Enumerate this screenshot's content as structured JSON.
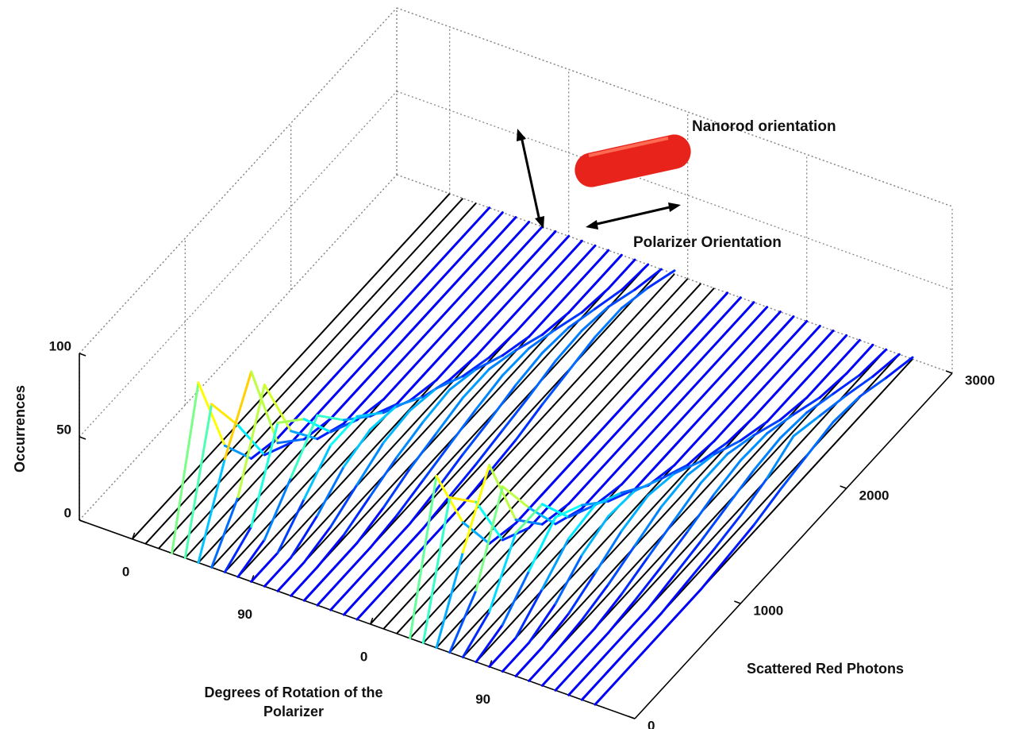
{
  "chart_data": {
    "type": "waterfall",
    "xlabel": "Degrees of Rotation of the Polarizer",
    "ylabel": "Scattered Red Photons",
    "zlabel": "Occurrences",
    "annotations": [
      "Nanorod orientation",
      "Polarizer Orientation"
    ],
    "colormap": "jet",
    "line_color": "#000000",
    "xlim": [
      -40,
      380
    ],
    "xticks": [
      0,
      90,
      {
        "value": 180,
        "label": "0"
      },
      {
        "value": 270,
        "label": "90"
      }
    ],
    "ylim": [
      0,
      3000
    ],
    "yticks": [
      0,
      1000,
      2000,
      3000
    ],
    "zlim": [
      0,
      100
    ],
    "zticks": [
      0,
      50,
      100
    ],
    "x": [
      0,
      10,
      20,
      30,
      40,
      50,
      60,
      70,
      80,
      90,
      100,
      110,
      120,
      130,
      140,
      150,
      160,
      170,
      180,
      190,
      200,
      210,
      220,
      230,
      240,
      250,
      260,
      270,
      280,
      290,
      300,
      310,
      320,
      330,
      340,
      350
    ],
    "y": [
      0,
      250,
      500,
      750,
      1000,
      1250,
      1500,
      1750,
      2000,
      2250,
      2500,
      2750,
      3000
    ],
    "values": [
      [
        0,
        0,
        0,
        0,
        0,
        0,
        0,
        0,
        0,
        0,
        0,
        0,
        0
      ],
      [
        0,
        0,
        0,
        0,
        0,
        0,
        0,
        0,
        0,
        0,
        0,
        0,
        0
      ],
      [
        0,
        0,
        0,
        0,
        0,
        0,
        0,
        0,
        0,
        0,
        0,
        0,
        0
      ],
      [
        0,
        85,
        30,
        5,
        0,
        0,
        0,
        0,
        0,
        0,
        0,
        0,
        0
      ],
      [
        0,
        75,
        45,
        10,
        0,
        0,
        0,
        0,
        0,
        0,
        0,
        0,
        0
      ],
      [
        0,
        45,
        80,
        20,
        5,
        0,
        0,
        0,
        0,
        0,
        0,
        0,
        0
      ],
      [
        0,
        25,
        75,
        30,
        8,
        0,
        0,
        0,
        0,
        0,
        0,
        0,
        0
      ],
      [
        0,
        10,
        55,
        40,
        15,
        5,
        0,
        0,
        0,
        0,
        0,
        0,
        0
      ],
      [
        0,
        5,
        25,
        45,
        25,
        10,
        0,
        0,
        0,
        0,
        0,
        0,
        0
      ],
      [
        0,
        0,
        15,
        30,
        30,
        15,
        5,
        0,
        0,
        0,
        0,
        0,
        0
      ],
      [
        0,
        0,
        8,
        20,
        25,
        22,
        10,
        3,
        0,
        0,
        0,
        0,
        0
      ],
      [
        0,
        0,
        4,
        12,
        20,
        22,
        18,
        8,
        2,
        0,
        0,
        0,
        0
      ],
      [
        0,
        0,
        2,
        8,
        14,
        18,
        20,
        15,
        6,
        0,
        0,
        0,
        0
      ],
      [
        0,
        0,
        0,
        4,
        10,
        14,
        18,
        18,
        12,
        4,
        0,
        0,
        0
      ],
      [
        0,
        0,
        0,
        2,
        6,
        10,
        14,
        17,
        16,
        10,
        3,
        0,
        0
      ],
      [
        0,
        0,
        0,
        0,
        3,
        7,
        10,
        14,
        16,
        14,
        8,
        2,
        0
      ],
      [
        0,
        0,
        0,
        0,
        2,
        4,
        7,
        10,
        14,
        15,
        12,
        5,
        0
      ],
      [
        0,
        0,
        0,
        0,
        0,
        2,
        4,
        8,
        11,
        14,
        14,
        9,
        2
      ],
      [
        0,
        0,
        0,
        0,
        0,
        0,
        0,
        0,
        0,
        0,
        0,
        0,
        0
      ],
      [
        0,
        0,
        0,
        0,
        0,
        0,
        0,
        0,
        0,
        0,
        0,
        0,
        0
      ],
      [
        0,
        0,
        0,
        0,
        0,
        0,
        0,
        0,
        0,
        0,
        0,
        0,
        0
      ],
      [
        0,
        80,
        35,
        5,
        0,
        0,
        0,
        0,
        0,
        0,
        0,
        0,
        0
      ],
      [
        0,
        70,
        50,
        10,
        0,
        0,
        0,
        0,
        0,
        0,
        0,
        0,
        0
      ],
      [
        0,
        40,
        75,
        25,
        5,
        0,
        0,
        0,
        0,
        0,
        0,
        0,
        0
      ],
      [
        0,
        20,
        65,
        35,
        8,
        0,
        0,
        0,
        0,
        0,
        0,
        0,
        0
      ],
      [
        0,
        10,
        40,
        40,
        15,
        5,
        0,
        0,
        0,
        0,
        0,
        0,
        0
      ],
      [
        0,
        5,
        20,
        35,
        25,
        10,
        0,
        0,
        0,
        0,
        0,
        0,
        0
      ],
      [
        0,
        0,
        12,
        25,
        28,
        18,
        5,
        0,
        0,
        0,
        0,
        0,
        0
      ],
      [
        0,
        0,
        6,
        18,
        24,
        22,
        12,
        3,
        0,
        0,
        0,
        0,
        0
      ],
      [
        0,
        0,
        3,
        10,
        18,
        22,
        18,
        8,
        2,
        0,
        0,
        0,
        0
      ],
      [
        0,
        0,
        2,
        6,
        12,
        18,
        20,
        15,
        6,
        0,
        0,
        0,
        0
      ],
      [
        0,
        0,
        0,
        3,
        8,
        13,
        18,
        18,
        12,
        4,
        0,
        0,
        0
      ],
      [
        0,
        0,
        0,
        2,
        5,
        9,
        14,
        17,
        16,
        10,
        3,
        0,
        0
      ],
      [
        0,
        0,
        0,
        0,
        3,
        6,
        10,
        14,
        16,
        14,
        8,
        2,
        0
      ],
      [
        0,
        0,
        0,
        0,
        2,
        4,
        7,
        12,
        20,
        15,
        10,
        4,
        0
      ],
      [
        0,
        0,
        0,
        0,
        0,
        2,
        4,
        8,
        11,
        14,
        12,
        6,
        1
      ]
    ]
  }
}
